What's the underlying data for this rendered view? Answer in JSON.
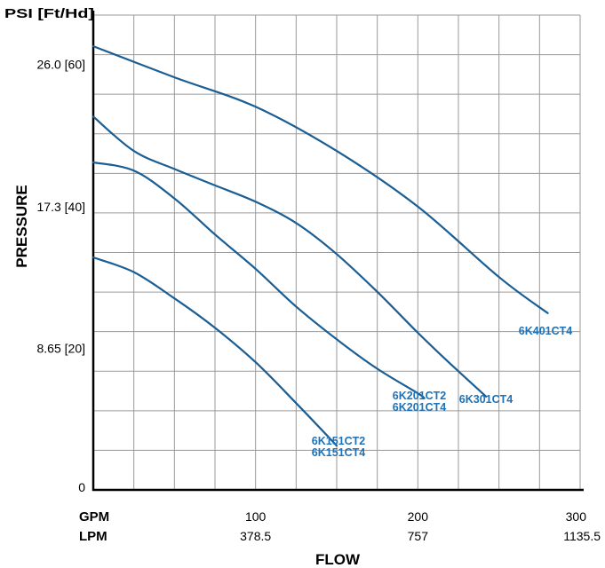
{
  "chart_data": {
    "type": "line",
    "y_axis_title": "PSI [Ft/Hd]",
    "y_axis_side_label": "PRESSURE",
    "x_axis_title": "FLOW",
    "x_row_labels": [
      "GPM",
      "LPM"
    ],
    "x_ticks": [
      {
        "gpm": 100,
        "gpm_label": "100",
        "lpm_label": "378.5"
      },
      {
        "gpm": 200,
        "gpm_label": "200",
        "lpm_label": "757"
      },
      {
        "gpm": 300,
        "gpm_label": "300",
        "lpm_label": "1135.5"
      }
    ],
    "y_ticks": [
      {
        "value": 0,
        "label": "0"
      },
      {
        "value": 8.65,
        "label": "8.65 [20]"
      },
      {
        "value": 17.3,
        "label": "17.3 [40]"
      },
      {
        "value": 26.0,
        "label": "26.0 [60]"
      }
    ],
    "xlim": [
      0,
      300
    ],
    "ylim": [
      0,
      29
    ],
    "grid": true,
    "line_color": "#1a5e94",
    "label_color": "#1d72b8",
    "series": [
      {
        "name_lines": [
          "6K401CT4"
        ],
        "x": [
          0,
          50,
          100,
          150,
          200,
          250,
          280
        ],
        "y": [
          27.1,
          25.2,
          23.4,
          20.7,
          17.3,
          13.0,
          10.8
        ]
      },
      {
        "name_lines": [
          "6K301CT4"
        ],
        "x": [
          0,
          25,
          50,
          75,
          100,
          125,
          150,
          175,
          200,
          220,
          242
        ],
        "y": [
          22.8,
          20.7,
          19.6,
          18.6,
          17.6,
          16.3,
          14.4,
          12.1,
          9.6,
          7.7,
          5.7
        ]
      },
      {
        "name_lines": [
          "6K201CT2",
          "6K201CT4"
        ],
        "x": [
          0,
          25,
          50,
          75,
          100,
          125,
          150,
          175,
          200,
          204
        ],
        "y": [
          20.0,
          19.5,
          17.8,
          15.6,
          13.5,
          11.2,
          9.2,
          7.4,
          5.9,
          5.6
        ]
      },
      {
        "name_lines": [
          "6K151CT2",
          "6K151CT4"
        ],
        "x": [
          0,
          25,
          50,
          75,
          100,
          125,
          150
        ],
        "y": [
          14.2,
          13.3,
          11.7,
          9.9,
          7.8,
          5.3,
          2.7
        ]
      }
    ]
  }
}
